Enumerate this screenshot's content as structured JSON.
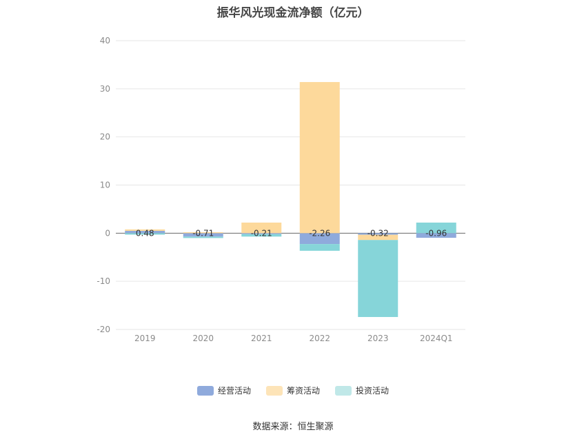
{
  "title": "振华风光现金流净额（亿元）",
  "source": "数据来源：恒生聚源",
  "colors": {
    "operating": "#8faadc",
    "financing": "#fdd99b",
    "investing": "#86d5d9",
    "grid": "#e6e6e6",
    "axis": "#666666"
  },
  "legend": [
    {
      "name": "经营活动",
      "color": "#8faadc"
    },
    {
      "name": "筹资活动",
      "color": "#fde4b8"
    },
    {
      "name": "投资活动",
      "color": "#c0e8e8"
    }
  ],
  "chart_data": {
    "type": "bar",
    "stacked": true,
    "title": "振华风光现金流净额（亿元）",
    "categories": [
      "2019",
      "2020",
      "2021",
      "2022",
      "2023",
      "2024Q1"
    ],
    "series": [
      {
        "name": "经营活动",
        "values": [
          0.48,
          -0.71,
          -0.21,
          -2.26,
          -0.32,
          -0.96
        ]
      },
      {
        "name": "筹资活动",
        "values": [
          0.3,
          0.2,
          2.2,
          31.4,
          -1.1,
          0.0
        ]
      },
      {
        "name": "投资活动",
        "values": [
          -0.3,
          -0.3,
          -0.5,
          -1.4,
          -16.0,
          2.2
        ]
      }
    ],
    "data_labels": [
      "0.48",
      "-0.71",
      "-0.21",
      "-2.26",
      "-0.32",
      "-0.96"
    ],
    "yticks": [
      40,
      30,
      20,
      10,
      0,
      -10,
      -20
    ],
    "ylim": [
      -20,
      40
    ],
    "grid": true,
    "legend_position": "bottom"
  }
}
